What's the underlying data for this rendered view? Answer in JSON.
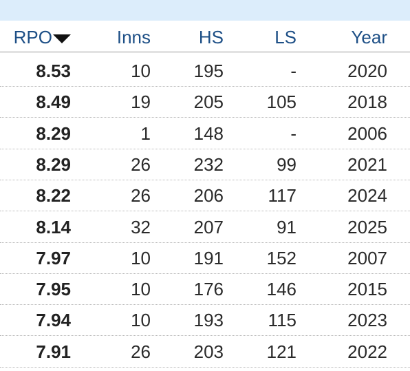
{
  "table": {
    "header": [
      "RPO",
      "Inns",
      "HS",
      "LS",
      "Year"
    ],
    "rows": [
      [
        "8.53",
        "10",
        "195",
        "-",
        "2020"
      ],
      [
        "8.49",
        "19",
        "205",
        "105",
        "2018"
      ],
      [
        "8.29",
        "1",
        "148",
        "-",
        "2006"
      ],
      [
        "8.29",
        "26",
        "232",
        "99",
        "2021"
      ],
      [
        "8.22",
        "26",
        "206",
        "117",
        "2024"
      ],
      [
        "8.14",
        "32",
        "207",
        "91",
        "2025"
      ],
      [
        "7.97",
        "10",
        "191",
        "152",
        "2007"
      ],
      [
        "7.95",
        "10",
        "176",
        "146",
        "2015"
      ],
      [
        "7.94",
        "10",
        "193",
        "115",
        "2023"
      ],
      [
        "7.91",
        "26",
        "203",
        "121",
        "2022"
      ]
    ]
  }
}
